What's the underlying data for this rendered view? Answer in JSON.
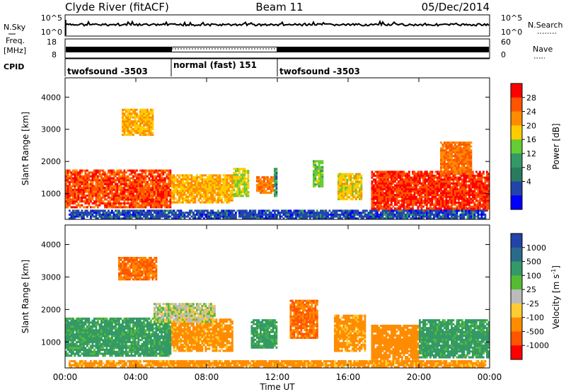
{
  "header": {
    "station": "Clyde River (fitACF)",
    "beam": "Beam 11",
    "date": "05/Dec/2014"
  },
  "panels": {
    "nsky": {
      "left_label": "N.Sky",
      "right_label": "N.Search",
      "left_ticks": [
        "10^5",
        "10^0"
      ],
      "right_ticks": [
        "10^5",
        "10^0"
      ]
    },
    "freq": {
      "left_label": "Freq.",
      "left_unit": "[MHz]",
      "left_ticks": [
        "18",
        "8"
      ],
      "right_label": "Nave",
      "right_ticks": [
        "60",
        "0"
      ]
    },
    "cpid": {
      "label": "CPID",
      "segments": [
        {
          "name": "twofsound -3503",
          "start_h": 0,
          "end_h": 6
        },
        {
          "name": "normal (fast) 151",
          "start_h": 6,
          "end_h": 12
        },
        {
          "name": "twofsound -3503",
          "start_h": 12,
          "end_h": 24
        }
      ]
    }
  },
  "x_axis": {
    "label": "Time UT",
    "ticks": [
      "00:00",
      "04:00",
      "08:00",
      "12:00",
      "16:00",
      "20:00",
      "00:00"
    ],
    "range_h": [
      0,
      24
    ]
  },
  "power_colorbar": {
    "title": "Power [dB]",
    "ticks": [
      "28",
      "24",
      "20",
      "16",
      "12",
      "8",
      "4"
    ],
    "colors": [
      "#ff0000",
      "#ff5500",
      "#ff8c00",
      "#ffcc00",
      "#66cc33",
      "#339966",
      "#2a7a60",
      "#2244aa",
      "#0000ff"
    ]
  },
  "velocity_colorbar": {
    "title": "Velocity [m s",
    "title_sup": "-1",
    "title_end": "]",
    "ticks": [
      "1000",
      "500",
      "100",
      "25",
      "-25",
      "-100",
      "-500",
      "-1000"
    ],
    "colors": [
      "#2244aa",
      "#2a6a8a",
      "#339966",
      "#55bb33",
      "#bbbbbb",
      "#ffcc33",
      "#ff8c00",
      "#ff5500",
      "#ff0000"
    ]
  },
  "chart_data": [
    {
      "type": "heatmap",
      "name": "power",
      "ylabel": "Slant Range [km]",
      "y_ticks": [
        1000,
        2000,
        3000,
        4000
      ],
      "ylim": [
        200,
        4600
      ],
      "x_ticks_h": [
        0,
        4,
        8,
        12,
        16,
        20,
        24
      ],
      "xlim_h": [
        0,
        24
      ],
      "blobs": [
        {
          "t0": 0.0,
          "t1": 6.0,
          "r0": 550,
          "r1": 1700,
          "level": 26
        },
        {
          "t0": 6.0,
          "t1": 9.5,
          "r0": 700,
          "r1": 1600,
          "level": 20
        },
        {
          "t0": 9.5,
          "t1": 10.4,
          "r0": 900,
          "r1": 1750,
          "level": 16
        },
        {
          "t0": 10.8,
          "t1": 11.8,
          "r0": 1000,
          "r1": 1500,
          "level": 24
        },
        {
          "t0": 11.8,
          "t1": 12.0,
          "r0": 900,
          "r1": 1800,
          "level": 10
        },
        {
          "t0": 14.0,
          "t1": 14.6,
          "r0": 1200,
          "r1": 2000,
          "level": 14
        },
        {
          "t0": 15.4,
          "t1": 16.8,
          "r0": 800,
          "r1": 1600,
          "level": 18
        },
        {
          "t0": 17.3,
          "t1": 24.0,
          "r0": 450,
          "r1": 1700,
          "level": 27
        },
        {
          "t0": 21.2,
          "t1": 23.0,
          "r0": 1600,
          "r1": 2600,
          "level": 24
        },
        {
          "t0": 3.2,
          "t1": 5.0,
          "r0": 2800,
          "r1": 3600,
          "level": 20
        },
        {
          "t0": 0.2,
          "t1": 23.8,
          "r0": 200,
          "r1": 450,
          "level": 6
        }
      ]
    },
    {
      "type": "heatmap",
      "name": "velocity",
      "ylabel": "Slant Range [km]",
      "y_ticks": [
        1000,
        2000,
        3000,
        4000
      ],
      "ylim": [
        200,
        4600
      ],
      "x_ticks_h": [
        0,
        4,
        8,
        12,
        16,
        20,
        24
      ],
      "xlim_h": [
        0,
        24
      ],
      "blobs": [
        {
          "t0": 0.0,
          "t1": 6.0,
          "r0": 550,
          "r1": 1750,
          "level": 100
        },
        {
          "t0": 6.0,
          "t1": 9.5,
          "r0": 700,
          "r1": 1700,
          "level": -100
        },
        {
          "t0": 10.5,
          "t1": 12.0,
          "r0": 800,
          "r1": 1700,
          "level": 100
        },
        {
          "t0": 12.7,
          "t1": 14.3,
          "r0": 1100,
          "r1": 2300,
          "level": -300
        },
        {
          "t0": 15.2,
          "t1": 17.0,
          "r0": 700,
          "r1": 1800,
          "level": -100
        },
        {
          "t0": 17.3,
          "t1": 20.0,
          "r0": 450,
          "r1": 1500,
          "level": -150
        },
        {
          "t0": 20.0,
          "t1": 24.0,
          "r0": 500,
          "r1": 1700,
          "level": 100
        },
        {
          "t0": 3.0,
          "t1": 5.2,
          "r0": 2900,
          "r1": 3600,
          "level": -300
        },
        {
          "t0": 5.0,
          "t1": 8.5,
          "r0": 1600,
          "r1": 2200,
          "level": 0
        },
        {
          "t0": 0.2,
          "t1": 23.8,
          "r0": 200,
          "r1": 400,
          "level": -100
        }
      ]
    }
  ]
}
